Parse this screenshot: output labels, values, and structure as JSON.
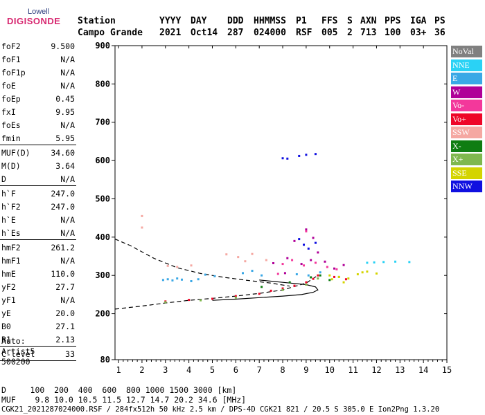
{
  "logo": {
    "top": "Lowell",
    "bottom": "DIGISONDE"
  },
  "header": {
    "row1": [
      {
        "k": "station",
        "t": "Station"
      },
      {
        "k": "yyyy",
        "t": "YYYY"
      },
      {
        "k": "day",
        "t": "DAY"
      },
      {
        "k": "ddd",
        "t": "DDD"
      },
      {
        "k": "hhmmss",
        "t": "HHMMSS"
      },
      {
        "k": "p1",
        "t": "P1"
      },
      {
        "k": "ffs",
        "t": "FFS"
      },
      {
        "k": "s",
        "t": "S"
      },
      {
        "k": "axn",
        "t": "AXN"
      },
      {
        "k": "pps",
        "t": "PPS"
      },
      {
        "k": "iga",
        "t": "IGA"
      },
      {
        "k": "ps",
        "t": "PS"
      }
    ],
    "row2": [
      {
        "k": "station",
        "t": "Campo Grande"
      },
      {
        "k": "yyyy",
        "t": "2021"
      },
      {
        "k": "day",
        "t": "Oct14"
      },
      {
        "k": "ddd",
        "t": "287"
      },
      {
        "k": "hhmmss",
        "t": "024000"
      },
      {
        "k": "p1",
        "t": "RSF"
      },
      {
        "k": "ffs",
        "t": "005"
      },
      {
        "k": "s",
        "t": "2"
      },
      {
        "k": "axn",
        "t": "713"
      },
      {
        "k": "pps",
        "t": "100"
      },
      {
        "k": "iga",
        "t": "03+"
      },
      {
        "k": "ps",
        "t": "36"
      }
    ]
  },
  "params": [
    {
      "name": "foF2",
      "value": "9.500"
    },
    {
      "name": "foF1",
      "value": "N/A"
    },
    {
      "name": "foF1p",
      "value": "N/A"
    },
    {
      "name": "foE",
      "value": "N/A"
    },
    {
      "name": "foEp",
      "value": "0.45"
    },
    {
      "name": "fxI",
      "value": "9.95"
    },
    {
      "name": "foEs",
      "value": "N/A"
    },
    {
      "name": "fmin",
      "value": "5.95",
      "sep": true
    },
    {
      "name": "MUF(D)",
      "value": "34.60"
    },
    {
      "name": "M(D)",
      "value": "3.64"
    },
    {
      "name": "D",
      "value": "N/A",
      "sep": true
    },
    {
      "name": "h`F",
      "value": "247.0"
    },
    {
      "name": "h`F2",
      "value": "247.0"
    },
    {
      "name": "h`E",
      "value": "N/A"
    },
    {
      "name": "h`Es",
      "value": "N/A",
      "sep": true
    },
    {
      "name": "hmF2",
      "value": "261.2"
    },
    {
      "name": "hmF1",
      "value": "N/A"
    },
    {
      "name": "hmE",
      "value": "110.0"
    },
    {
      "name": "yF2",
      "value": "27.7"
    },
    {
      "name": "yF1",
      "value": "N/A"
    },
    {
      "name": "yE",
      "value": "20.0"
    },
    {
      "name": "B0",
      "value": "27.1"
    },
    {
      "name": "B1",
      "value": "2.13",
      "sep": true
    },
    {
      "name": "C-level",
      "value": "33",
      "sep": true
    }
  ],
  "scaler": {
    "line1": "Auto:",
    "line2": "Artist5",
    "line3": "500200"
  },
  "legend": [
    {
      "label": "NoVal",
      "color": "#808080"
    },
    {
      "label": "NNE",
      "color": "#2ad2f5"
    },
    {
      "label": "E",
      "color": "#3aa8e6"
    },
    {
      "label": "W",
      "color": "#b00098"
    },
    {
      "label": "Vo-",
      "color": "#f3389b"
    },
    {
      "label": "Vo+",
      "color": "#ee0628"
    },
    {
      "label": "SSW",
      "color": "#f5a8a2"
    },
    {
      "label": "X-",
      "color": "#0f7d12"
    },
    {
      "label": "X+",
      "color": "#7fb84e"
    },
    {
      "label": "SSE",
      "color": "#d4d400"
    },
    {
      "label": "NNW",
      "color": "#1010e0"
    }
  ],
  "footer": {
    "line1": "D     100  200  400  600  800 1000 1500 3000 [km]",
    "line2": "MUF    9.8 10.0 10.5 11.5 12.7 14.7 20.2 34.6 [MHz]",
    "line3": "CGK21_2021287024000.RSF / 284fx512h 50 kHz 2.5 km / DPS-4D CGK21 821 / 20.5 S 305.0 E Ion2Png 1.3.20"
  },
  "chart_data": {
    "type": "scatter",
    "title": "",
    "xlabel": "",
    "ylabel": "",
    "xlim": [
      0.85,
      15
    ],
    "ylim": [
      80,
      900
    ],
    "x_ticks": [
      1,
      2,
      3,
      4,
      5,
      6,
      7,
      8,
      9,
      10,
      11,
      12,
      13,
      14,
      15
    ],
    "y_ticks": [
      80,
      200,
      300,
      400,
      500,
      600,
      700,
      800,
      900
    ],
    "series": [
      {
        "name": "NNE",
        "color": "#2ad2f5",
        "points": [
          [
            12.3,
            335
          ],
          [
            12.8,
            336
          ],
          [
            13.4,
            335
          ],
          [
            11.6,
            333
          ],
          [
            11.9,
            334
          ]
        ]
      },
      {
        "name": "E",
        "color": "#3aa8e6",
        "points": [
          [
            2.9,
            288
          ],
          [
            3.1,
            290
          ],
          [
            3.3,
            287
          ],
          [
            3.5,
            292
          ],
          [
            3.7,
            289
          ],
          [
            4.1,
            285
          ],
          [
            4.4,
            290
          ],
          [
            4.7,
            302
          ],
          [
            5.1,
            298
          ],
          [
            6.3,
            306
          ],
          [
            6.7,
            312
          ],
          [
            7.1,
            300
          ],
          [
            8.6,
            303
          ],
          [
            9.1,
            300
          ],
          [
            9.6,
            308
          ]
        ]
      },
      {
        "name": "W",
        "color": "#b00098",
        "points": [
          [
            8.2,
            345
          ],
          [
            8.5,
            390
          ],
          [
            8.8,
            330
          ],
          [
            9.0,
            420
          ],
          [
            9.2,
            340
          ],
          [
            9.5,
            360
          ],
          [
            9.8,
            336
          ],
          [
            10.2,
            318
          ],
          [
            10.6,
            327
          ],
          [
            7.6,
            332
          ],
          [
            8.1,
            306
          ],
          [
            9.3,
            398
          ]
        ]
      },
      {
        "name": "Vo-",
        "color": "#f3389b",
        "points": [
          [
            8.0,
            330
          ],
          [
            8.4,
            340
          ],
          [
            8.9,
            326
          ],
          [
            9.4,
            333
          ],
          [
            9.9,
            322
          ],
          [
            10.3,
            316
          ],
          [
            7.8,
            304
          ],
          [
            9.0,
            415
          ]
        ]
      },
      {
        "name": "Vo+",
        "color": "#ee0628",
        "points": [
          [
            3.0,
            232
          ],
          [
            4.0,
            236
          ],
          [
            5.0,
            239
          ],
          [
            6.0,
            246
          ],
          [
            7.0,
            252
          ],
          [
            7.5,
            260
          ],
          [
            8.0,
            266
          ],
          [
            8.5,
            273
          ],
          [
            9.0,
            282
          ],
          [
            9.3,
            291
          ],
          [
            9.5,
            300
          ],
          [
            10.2,
            296
          ],
          [
            10.7,
            290
          ]
        ]
      },
      {
        "name": "SSW",
        "color": "#f5a8a2",
        "points": [
          [
            2.0,
            455
          ],
          [
            2.0,
            425
          ],
          [
            3.1,
            325
          ],
          [
            3.5,
            322
          ],
          [
            4.1,
            326
          ],
          [
            5.6,
            355
          ],
          [
            6.1,
            348
          ],
          [
            6.4,
            337
          ],
          [
            6.7,
            356
          ],
          [
            7.3,
            340
          ]
        ]
      },
      {
        "name": "X-",
        "color": "#0f7d12",
        "points": [
          [
            9.2,
            295
          ],
          [
            9.6,
            300
          ],
          [
            10.0,
            288
          ],
          [
            8.3,
            282
          ],
          [
            7.1,
            270
          ]
        ]
      },
      {
        "name": "X+",
        "color": "#7fb84e",
        "points": [
          [
            3.0,
            230
          ],
          [
            4.5,
            235
          ],
          [
            6.0,
            242
          ],
          [
            8.0,
            262
          ],
          [
            9.0,
            276
          ],
          [
            9.5,
            292
          ],
          [
            10.4,
            296
          ]
        ]
      },
      {
        "name": "SSE",
        "color": "#d4d400",
        "points": [
          [
            10.0,
            300
          ],
          [
            10.4,
            296
          ],
          [
            10.8,
            292
          ],
          [
            11.2,
            303
          ],
          [
            11.6,
            310
          ],
          [
            12.0,
            305
          ],
          [
            10.1,
            290
          ],
          [
            10.6,
            282
          ],
          [
            11.4,
            308
          ]
        ]
      },
      {
        "name": "NNW",
        "color": "#1010e0",
        "points": [
          [
            8.0,
            606
          ],
          [
            8.2,
            605
          ],
          [
            8.7,
            612
          ],
          [
            9.0,
            615
          ],
          [
            9.4,
            617
          ],
          [
            8.9,
            380
          ],
          [
            9.1,
            370
          ],
          [
            9.4,
            385
          ],
          [
            8.7,
            395
          ]
        ]
      }
    ],
    "lines": [
      {
        "name": "",
        "style": "dashed",
        "points": [
          [
            0.85,
            395
          ],
          [
            1.5,
            378
          ],
          [
            2.5,
            345
          ],
          [
            3.5,
            320
          ],
          [
            4.5,
            305
          ],
          [
            5.5,
            295
          ],
          [
            6.5,
            287
          ],
          [
            7.5,
            280
          ],
          [
            8.3,
            272
          ]
        ]
      },
      {
        "name": "",
        "style": "dashed",
        "points": [
          [
            0.85,
            212
          ],
          [
            2,
            220
          ],
          [
            3,
            228
          ],
          [
            4,
            235
          ],
          [
            5,
            240
          ],
          [
            6,
            246
          ],
          [
            7,
            253
          ],
          [
            8,
            262
          ],
          [
            9,
            280
          ],
          [
            9.5,
            300
          ]
        ]
      },
      {
        "name": "",
        "style": "solid",
        "points": [
          [
            5.0,
            235
          ],
          [
            6,
            238
          ],
          [
            7,
            242
          ],
          [
            8,
            246
          ],
          [
            8.8,
            250
          ],
          [
            9.3,
            256
          ],
          [
            9.5,
            262
          ],
          [
            9.4,
            270
          ],
          [
            9,
            276
          ],
          [
            8,
            282
          ],
          [
            7,
            288
          ]
        ]
      }
    ]
  }
}
